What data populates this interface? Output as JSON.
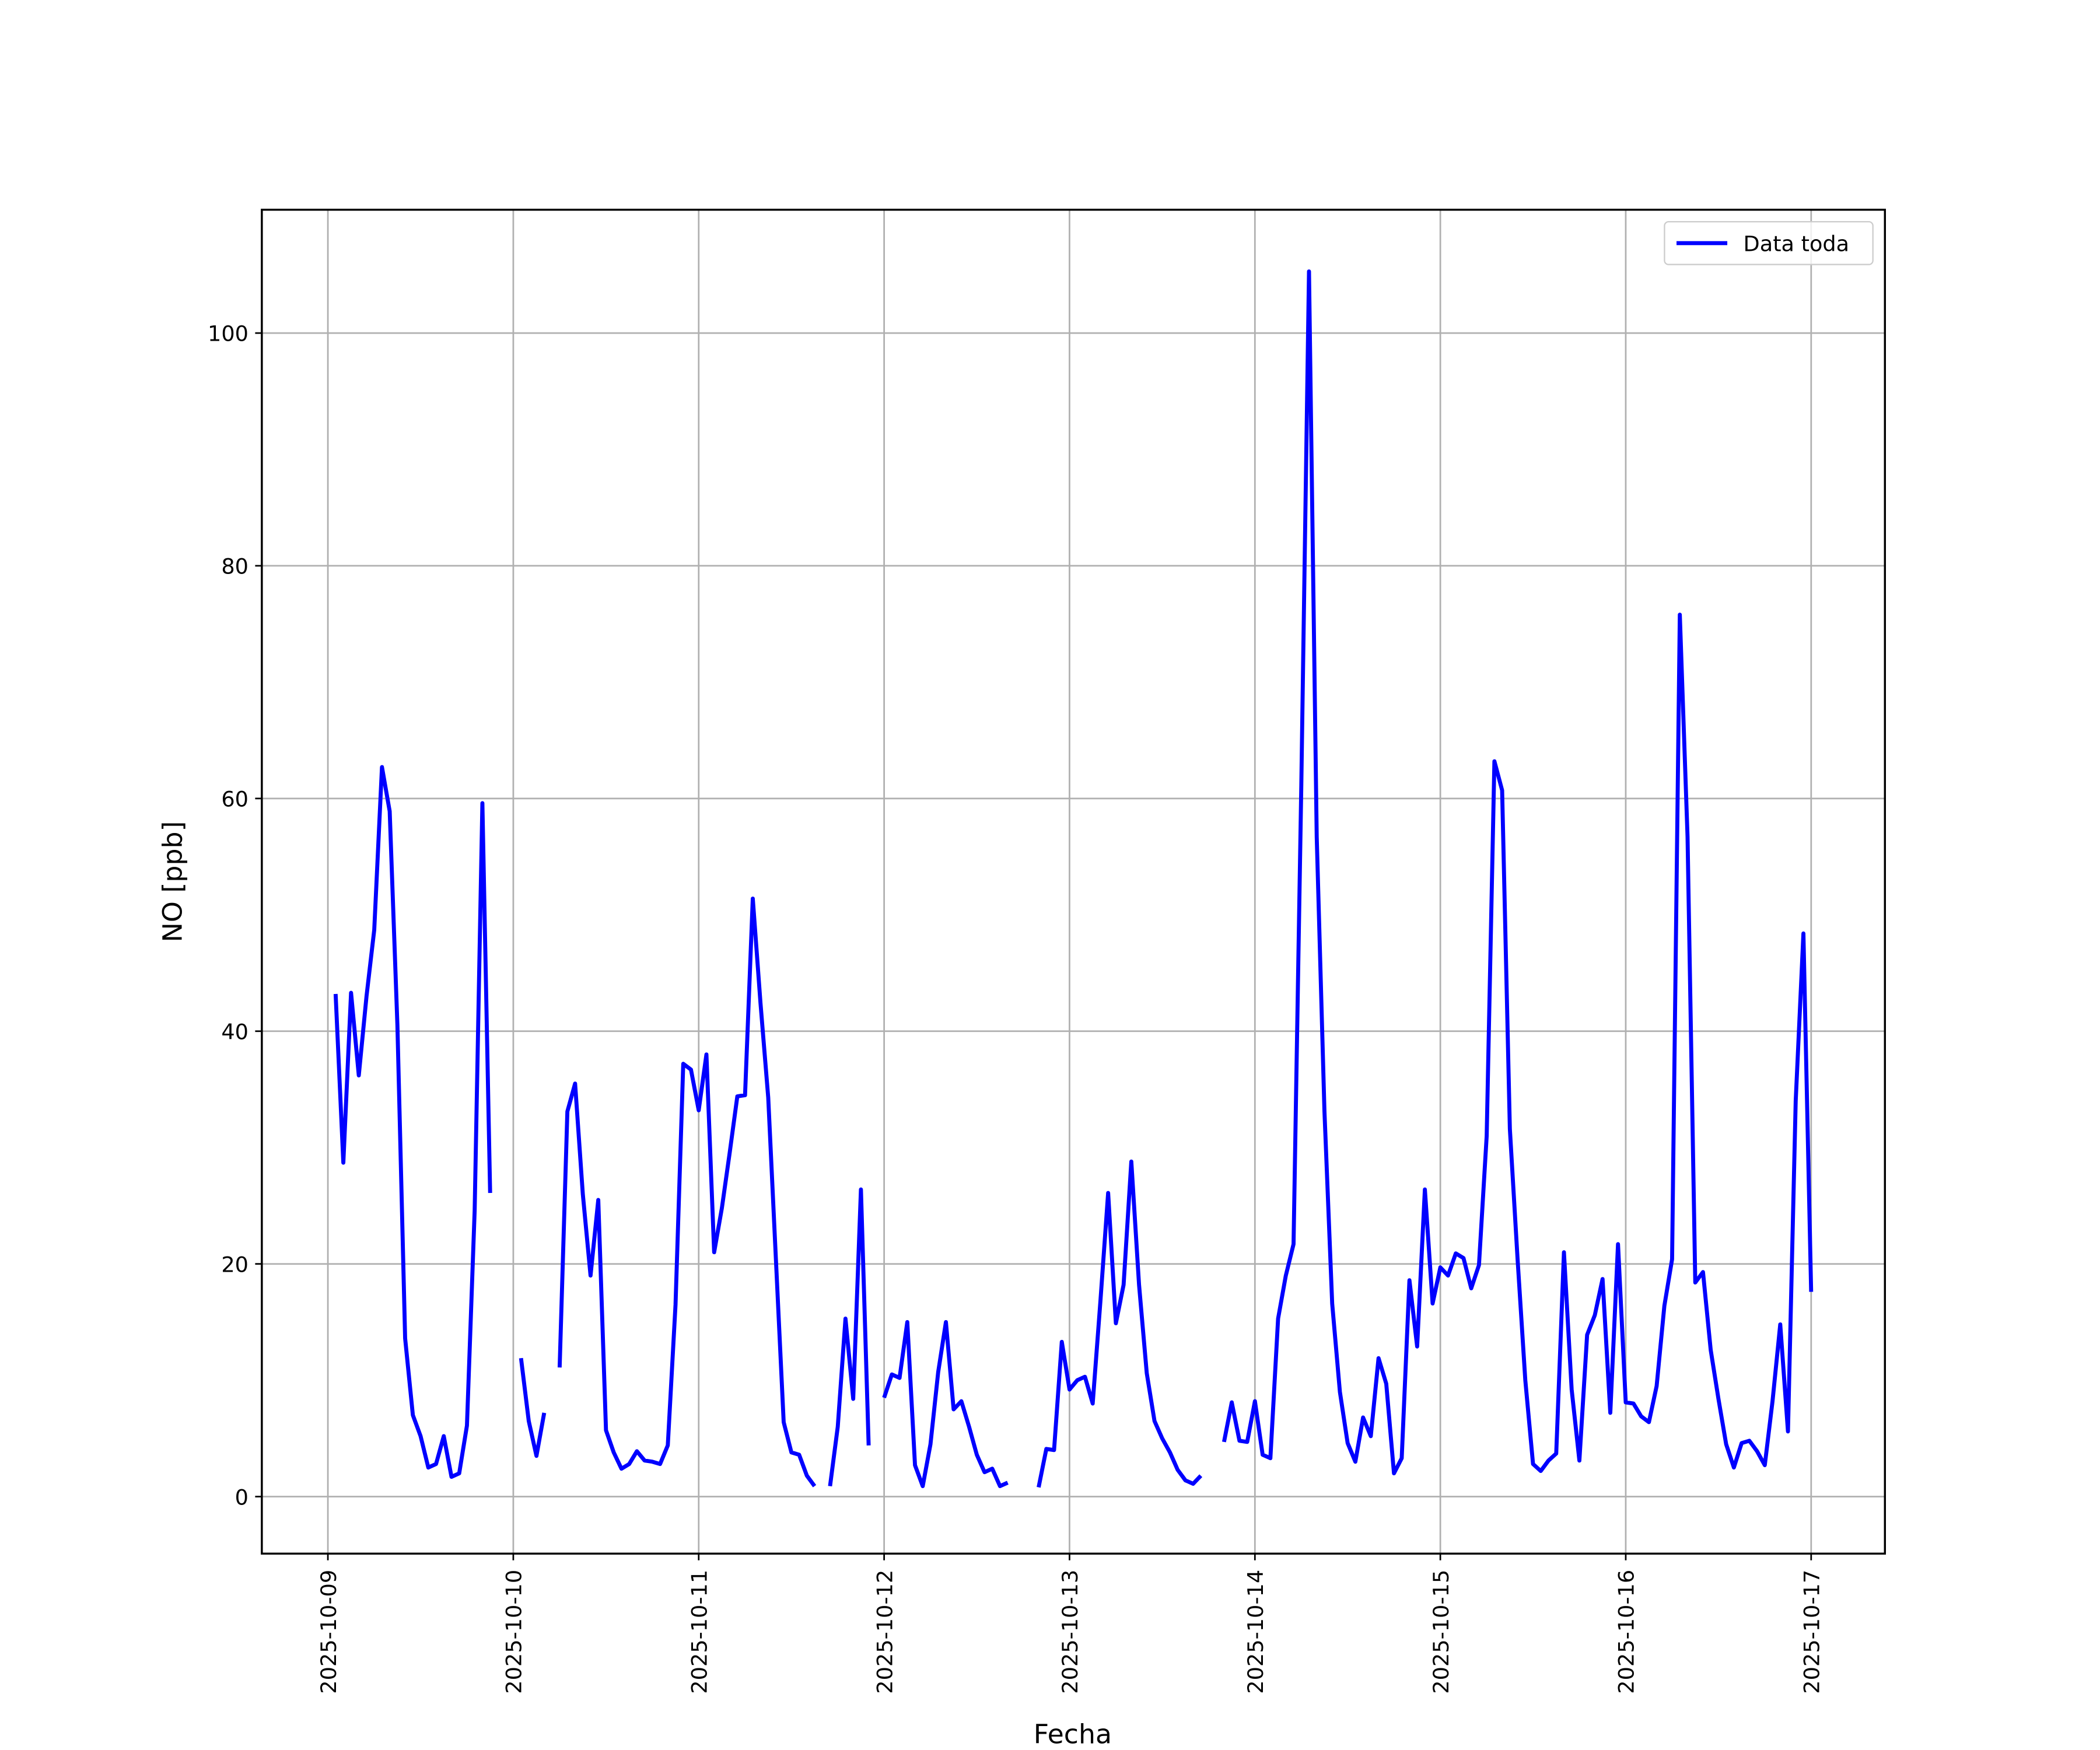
{
  "chart_data": {
    "type": "line",
    "xlabel": "Fecha",
    "ylabel": "NO [ppb]",
    "xlim": [
      "2025-10-08 15:27",
      "2025-10-17 09:33"
    ],
    "xticks": [
      "2025-10-09",
      "2025-10-10",
      "2025-10-11",
      "2025-10-12",
      "2025-10-13",
      "2025-10-14",
      "2025-10-15",
      "2025-10-16",
      "2025-10-17"
    ],
    "ylim": [
      -4.9,
      110.6
    ],
    "yticks": [
      0,
      20,
      40,
      60,
      80,
      100
    ],
    "grid": true,
    "legend": "upper right",
    "x": [
      "2025-10-09 01:00",
      "2025-10-09 02:00",
      "2025-10-09 03:00",
      "2025-10-09 04:00",
      "2025-10-09 05:00",
      "2025-10-09 06:00",
      "2025-10-09 07:00",
      "2025-10-09 08:00",
      "2025-10-09 09:00",
      "2025-10-09 10:00",
      "2025-10-09 11:00",
      "2025-10-09 12:00",
      "2025-10-09 13:00",
      "2025-10-09 14:00",
      "2025-10-09 15:00",
      "2025-10-09 16:00",
      "2025-10-09 17:00",
      "2025-10-09 18:00",
      "2025-10-09 19:00",
      "2025-10-09 20:00",
      "2025-10-09 21:00",
      "2025-10-09 22:00",
      "2025-10-09 23:00",
      "2025-10-10 00:00",
      "2025-10-10 01:00",
      "2025-10-10 02:00",
      "2025-10-10 03:00",
      "2025-10-10 04:00",
      "2025-10-10 05:00",
      "2025-10-10 06:00",
      "2025-10-10 07:00",
      "2025-10-10 08:00",
      "2025-10-10 09:00",
      "2025-10-10 10:00",
      "2025-10-10 11:00",
      "2025-10-10 12:00",
      "2025-10-10 13:00",
      "2025-10-10 14:00",
      "2025-10-10 15:00",
      "2025-10-10 16:00",
      "2025-10-10 17:00",
      "2025-10-10 18:00",
      "2025-10-10 19:00",
      "2025-10-10 20:00",
      "2025-10-10 21:00",
      "2025-10-10 22:00",
      "2025-10-10 23:00",
      "2025-10-11 00:00",
      "2025-10-11 01:00",
      "2025-10-11 02:00",
      "2025-10-11 03:00",
      "2025-10-11 04:00",
      "2025-10-11 05:00",
      "2025-10-11 06:00",
      "2025-10-11 07:00",
      "2025-10-11 08:00",
      "2025-10-11 09:00",
      "2025-10-11 10:00",
      "2025-10-11 11:00",
      "2025-10-11 12:00",
      "2025-10-11 13:00",
      "2025-10-11 14:00",
      "2025-10-11 15:00",
      "2025-10-11 16:00",
      "2025-10-11 17:00",
      "2025-10-11 18:00",
      "2025-10-11 19:00",
      "2025-10-11 20:00",
      "2025-10-11 21:00",
      "2025-10-11 22:00",
      "2025-10-11 23:00",
      "2025-10-12 00:00",
      "2025-10-12 01:00",
      "2025-10-12 02:00",
      "2025-10-12 03:00",
      "2025-10-12 04:00",
      "2025-10-12 05:00",
      "2025-10-12 06:00",
      "2025-10-12 07:00",
      "2025-10-12 08:00",
      "2025-10-12 09:00",
      "2025-10-12 10:00",
      "2025-10-12 11:00",
      "2025-10-12 12:00",
      "2025-10-12 13:00",
      "2025-10-12 14:00",
      "2025-10-12 15:00",
      "2025-10-12 16:00",
      "2025-10-12 17:00",
      "2025-10-12 18:00",
      "2025-10-12 19:00",
      "2025-10-12 20:00",
      "2025-10-12 21:00",
      "2025-10-12 22:00",
      "2025-10-12 23:00",
      "2025-10-13 00:00",
      "2025-10-13 01:00",
      "2025-10-13 02:00",
      "2025-10-13 03:00",
      "2025-10-13 04:00",
      "2025-10-13 05:00",
      "2025-10-13 06:00",
      "2025-10-13 07:00",
      "2025-10-13 08:00",
      "2025-10-13 09:00",
      "2025-10-13 10:00",
      "2025-10-13 11:00",
      "2025-10-13 12:00",
      "2025-10-13 13:00",
      "2025-10-13 14:00",
      "2025-10-13 15:00",
      "2025-10-13 16:00",
      "2025-10-13 17:00",
      "2025-10-13 18:00",
      "2025-10-13 19:00",
      "2025-10-13 20:00",
      "2025-10-13 21:00",
      "2025-10-13 22:00",
      "2025-10-13 23:00",
      "2025-10-14 00:00",
      "2025-10-14 01:00",
      "2025-10-14 02:00",
      "2025-10-14 03:00",
      "2025-10-14 04:00",
      "2025-10-14 05:00",
      "2025-10-14 06:00",
      "2025-10-14 07:00",
      "2025-10-14 08:00",
      "2025-10-14 09:00",
      "2025-10-14 10:00",
      "2025-10-14 11:00",
      "2025-10-14 12:00",
      "2025-10-14 13:00",
      "2025-10-14 14:00",
      "2025-10-14 15:00",
      "2025-10-14 16:00",
      "2025-10-14 17:00",
      "2025-10-14 18:00",
      "2025-10-14 19:00",
      "2025-10-14 20:00",
      "2025-10-14 21:00",
      "2025-10-14 22:00",
      "2025-10-14 23:00",
      "2025-10-15 00:00",
      "2025-10-15 01:00",
      "2025-10-15 02:00",
      "2025-10-15 03:00",
      "2025-10-15 04:00",
      "2025-10-15 05:00",
      "2025-10-15 06:00",
      "2025-10-15 07:00",
      "2025-10-15 08:00",
      "2025-10-15 09:00",
      "2025-10-15 10:00",
      "2025-10-15 11:00",
      "2025-10-15 12:00",
      "2025-10-15 13:00",
      "2025-10-15 14:00",
      "2025-10-15 15:00",
      "2025-10-15 16:00",
      "2025-10-15 17:00",
      "2025-10-15 18:00",
      "2025-10-15 19:00",
      "2025-10-15 20:00",
      "2025-10-15 21:00",
      "2025-10-15 22:00",
      "2025-10-15 23:00",
      "2025-10-16 00:00",
      "2025-10-16 01:00",
      "2025-10-16 02:00",
      "2025-10-16 03:00",
      "2025-10-16 04:00",
      "2025-10-16 05:00",
      "2025-10-16 06:00",
      "2025-10-16 07:00",
      "2025-10-16 08:00",
      "2025-10-16 09:00",
      "2025-10-16 10:00",
      "2025-10-16 11:00",
      "2025-10-16 12:00",
      "2025-10-16 13:00",
      "2025-10-16 14:00",
      "2025-10-16 15:00",
      "2025-10-16 16:00",
      "2025-10-16 17:00",
      "2025-10-16 18:00",
      "2025-10-16 19:00",
      "2025-10-16 20:00",
      "2025-10-16 21:00",
      "2025-10-16 22:00",
      "2025-10-16 23:00",
      "2025-10-17 00:00"
    ],
    "series": [
      {
        "name": "Data toda",
        "color": "#0000ff",
        "values": [
          43.2,
          28.7,
          43.3,
          36.2,
          43,
          48.7,
          62.7,
          58.9,
          40.5,
          13.6,
          7,
          5.2,
          2.5,
          2.8,
          5.2,
          1.7,
          2,
          6.1,
          24.6,
          59.6,
          26.1,
          null,
          null,
          null,
          11.9,
          6.5,
          3.5,
          7.2,
          null,
          11.1,
          33.1,
          35.5,
          26,
          19,
          25.5,
          5.7,
          3.8,
          2.4,
          2.8,
          3.9,
          3.1,
          3,
          2.8,
          4.4,
          16.5,
          37.2,
          36.7,
          33.2,
          38,
          21,
          24.8,
          29.5,
          34.4,
          34.5,
          51.4,
          42.4,
          34.3,
          20.3,
          6.4,
          3.8,
          3.6,
          1.8,
          0.9,
          null,
          0.9,
          6,
          15.3,
          8.4,
          26.4,
          4.4,
          null,
          8.5,
          10.5,
          10.2,
          15,
          2.7,
          0.9,
          4.5,
          10.7,
          15,
          7.5,
          8.2,
          6,
          3.6,
          2.1,
          2.4,
          0.9,
          1.2,
          null,
          null,
          null,
          0.8,
          4.1,
          4,
          13.3,
          9.2,
          10,
          10.3,
          8,
          16.8,
          26.1,
          14.9,
          18.2,
          28.8,
          18.2,
          10.6,
          6.5,
          5,
          3.8,
          2.3,
          1.4,
          1.1,
          1.8,
          null,
          null,
          4.7,
          8.1,
          4.8,
          4.7,
          8.2,
          3.6,
          3.3,
          15.3,
          19,
          21.7,
          61,
          105.3,
          56.7,
          33.1,
          16.6,
          9,
          4.6,
          3,
          6.8,
          5.2,
          11.9,
          9.7,
          2,
          3.3,
          18.6,
          12.9,
          26.4,
          16.6,
          19.7,
          19,
          20.9,
          20.5,
          17.9,
          19.9,
          31,
          63.2,
          60.7,
          31.6,
          20.4,
          10,
          2.8,
          2.2,
          3.1,
          3.7,
          21,
          9.2,
          3.1,
          13.9,
          15.6,
          18.7,
          7.2,
          21.7,
          8.1,
          8,
          6.9,
          6.4,
          9.5,
          16.4,
          20.4,
          75.8,
          56.7,
          18.4,
          19.3,
          12.6,
          8.4,
          4.5,
          2.5,
          4.6,
          4.8,
          3.9,
          2.7,
          8.2,
          14.8,
          5.6,
          34,
          48.4,
          17.6
        ]
      }
    ]
  }
}
